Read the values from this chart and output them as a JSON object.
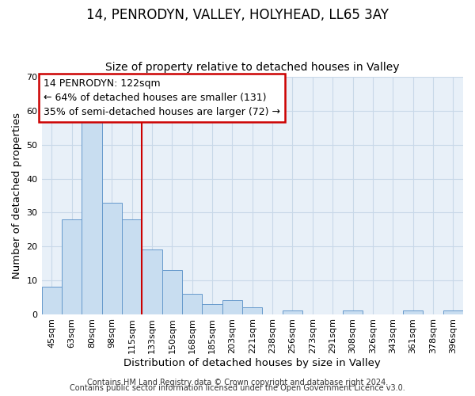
{
  "title": "14, PENRODYN, VALLEY, HOLYHEAD, LL65 3AY",
  "subtitle": "Size of property relative to detached houses in Valley",
  "xlabel": "Distribution of detached houses by size in Valley",
  "ylabel": "Number of detached properties",
  "bar_labels": [
    "45sqm",
    "63sqm",
    "80sqm",
    "98sqm",
    "115sqm",
    "133sqm",
    "150sqm",
    "168sqm",
    "185sqm",
    "203sqm",
    "221sqm",
    "238sqm",
    "256sqm",
    "273sqm",
    "291sqm",
    "308sqm",
    "326sqm",
    "343sqm",
    "361sqm",
    "378sqm",
    "396sqm"
  ],
  "bar_values": [
    8,
    28,
    57,
    33,
    28,
    19,
    13,
    6,
    3,
    4,
    2,
    0,
    1,
    0,
    0,
    1,
    0,
    0,
    1,
    0,
    1
  ],
  "bar_color": "#c8ddf0",
  "bar_edgecolor": "#6699cc",
  "bar_linewidth": 0.7,
  "vline_x": 4.5,
  "vline_color": "#cc0000",
  "vline_linewidth": 1.5,
  "annotation_line1": "14 PENRODYN: 122sqm",
  "annotation_line2": "← 64% of detached houses are smaller (131)",
  "annotation_line3": "35% of semi-detached houses are larger (72) →",
  "annotation_box_edgecolor": "#cc0000",
  "annotation_box_facecolor": "#ffffff",
  "ylim": [
    0,
    70
  ],
  "yticks": [
    0,
    10,
    20,
    30,
    40,
    50,
    60,
    70
  ],
  "grid_color": "#c8d8e8",
  "background_color": "#e8f0f8",
  "footer_line1": "Contains HM Land Registry data © Crown copyright and database right 2024.",
  "footer_line2": "Contains public sector information licensed under the Open Government Licence v3.0.",
  "title_fontsize": 12,
  "subtitle_fontsize": 10,
  "axis_label_fontsize": 9.5,
  "tick_fontsize": 8,
  "annotation_fontsize": 9,
  "footer_fontsize": 7
}
